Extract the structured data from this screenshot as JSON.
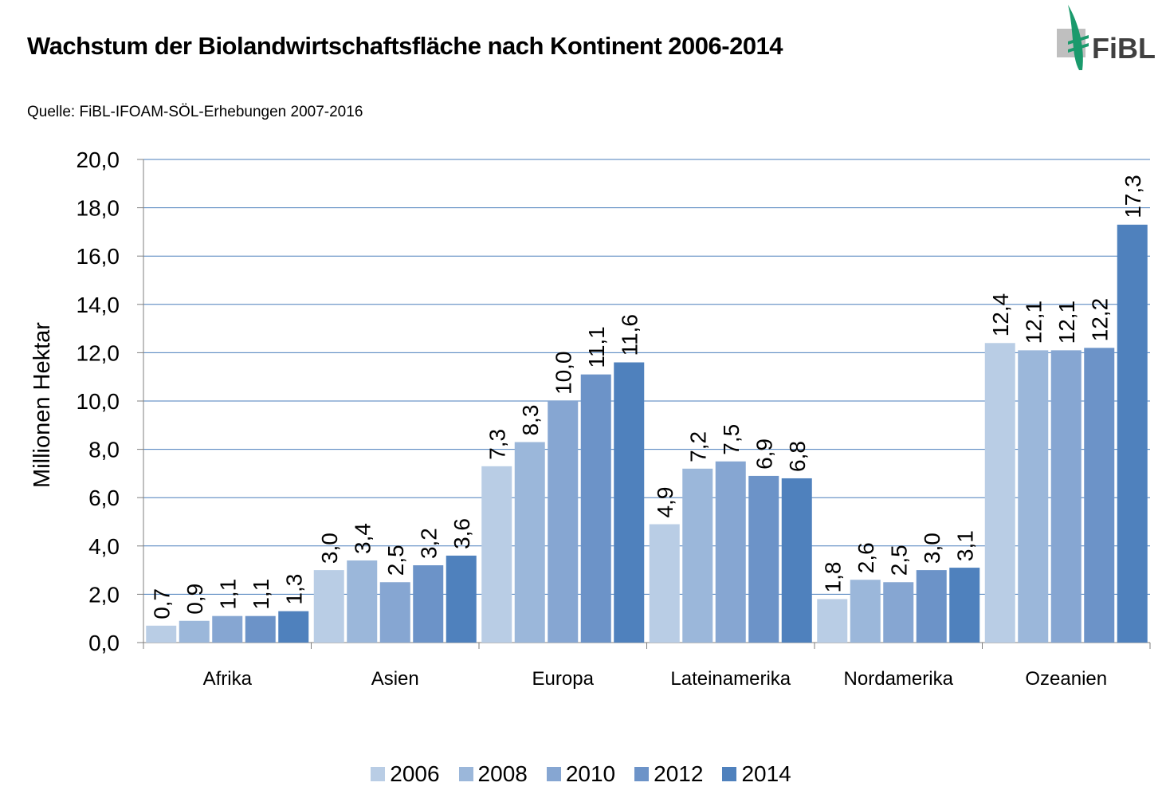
{
  "header": {
    "title": "Wachstum der Biolandwirtschaftsfläche  nach Kontinent  2006-2014",
    "subtitle": "Quelle: FiBL-IFOAM-SÖL-Erhebungen 2007-2016",
    "logo_text": "FiBL"
  },
  "colors": {
    "series": [
      "#B9CDE5",
      "#9BB7DA",
      "#86A6D2",
      "#6C93C8",
      "#4F81BD"
    ],
    "logo_green": "#1A9A6C",
    "logo_grey": "#BFBFBF",
    "gridline": "#4A7EBB"
  },
  "chart_data": {
    "type": "bar",
    "title": "",
    "xlabel": "",
    "ylabel": "Millionen Hektar",
    "ylim": [
      0,
      20
    ],
    "ytick_labels": [
      "0,0",
      "2,0",
      "4,0",
      "6,0",
      "8,0",
      "10,0",
      "12,0",
      "14,0",
      "16,0",
      "18,0",
      "20,0"
    ],
    "grid": true,
    "legend_position": "bottom",
    "categories": [
      "Afrika",
      "Asien",
      "Europa",
      "Lateinamerika",
      "Nordamerika",
      "Ozeanien"
    ],
    "series": [
      {
        "name": "2006",
        "values": [
          0.7,
          3.0,
          7.3,
          4.9,
          1.8,
          12.4
        ],
        "labels": [
          "0,7",
          "3,0",
          "7,3",
          "4,9",
          "1,8",
          "12,4"
        ]
      },
      {
        "name": "2008",
        "values": [
          0.9,
          3.4,
          8.3,
          7.2,
          2.6,
          12.1
        ],
        "labels": [
          "0,9",
          "3,4",
          "8,3",
          "7,2",
          "2,6",
          "12,1"
        ]
      },
      {
        "name": "2010",
        "values": [
          1.1,
          2.5,
          10.0,
          7.5,
          2.5,
          12.1
        ],
        "labels": [
          "1,1",
          "2,5",
          "10,0",
          "7,5",
          "2,5",
          "12,1"
        ]
      },
      {
        "name": "2012",
        "values": [
          1.1,
          3.2,
          11.1,
          6.9,
          3.0,
          12.2
        ],
        "labels": [
          "1,1",
          "3,2",
          "11,1",
          "6,9",
          "3,0",
          "12,2"
        ]
      },
      {
        "name": "2014",
        "values": [
          1.3,
          3.6,
          11.6,
          6.8,
          3.1,
          17.3
        ],
        "labels": [
          "1,3",
          "3,6",
          "11,6",
          "6,8",
          "3,1",
          "17,3"
        ]
      }
    ]
  }
}
